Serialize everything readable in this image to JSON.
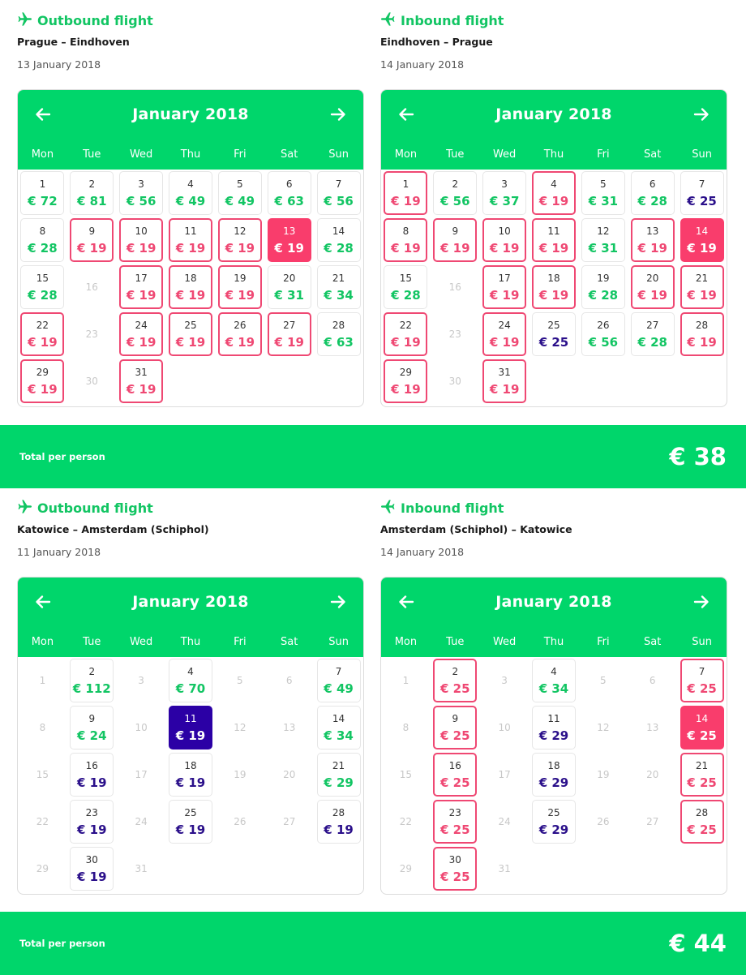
{
  "colors": {
    "brand_green": "#00d66b",
    "price_green": "#12c563",
    "promo_pink": "#ef4873",
    "selected_pink": "#f93d6c",
    "navy": "#2b00a5"
  },
  "weekday_labels": [
    "Mon",
    "Tue",
    "Wed",
    "Thu",
    "Fri",
    "Sat",
    "Sun"
  ],
  "trips": [
    {
      "outbound": {
        "title": "Outbound flight",
        "icon": "plane-right-icon",
        "route": "Prague – Eindhoven",
        "date": "13 January 2018",
        "calendar": {
          "month": "January 2018",
          "leading_blanks": 0,
          "days": [
            {
              "d": "1",
              "p": "€ 72",
              "s": "green"
            },
            {
              "d": "2",
              "p": "€ 81",
              "s": "green"
            },
            {
              "d": "3",
              "p": "€ 56",
              "s": "green"
            },
            {
              "d": "4",
              "p": "€ 49",
              "s": "green"
            },
            {
              "d": "5",
              "p": "€ 49",
              "s": "green"
            },
            {
              "d": "6",
              "p": "€ 63",
              "s": "green"
            },
            {
              "d": "7",
              "p": "€ 56",
              "s": "green"
            },
            {
              "d": "8",
              "p": "€ 28",
              "s": "green"
            },
            {
              "d": "9",
              "p": "€ 19",
              "s": "pink"
            },
            {
              "d": "10",
              "p": "€ 19",
              "s": "pink"
            },
            {
              "d": "11",
              "p": "€ 19",
              "s": "pink"
            },
            {
              "d": "12",
              "p": "€ 19",
              "s": "pink"
            },
            {
              "d": "13",
              "p": "€ 19",
              "s": "sel-pink"
            },
            {
              "d": "14",
              "p": "€ 28",
              "s": "green"
            },
            {
              "d": "15",
              "p": "€ 28",
              "s": "green"
            },
            {
              "d": "16",
              "p": "",
              "s": "empty"
            },
            {
              "d": "17",
              "p": "€ 19",
              "s": "pink"
            },
            {
              "d": "18",
              "p": "€ 19",
              "s": "pink"
            },
            {
              "d": "19",
              "p": "€ 19",
              "s": "pink"
            },
            {
              "d": "20",
              "p": "€ 31",
              "s": "green"
            },
            {
              "d": "21",
              "p": "€ 34",
              "s": "green"
            },
            {
              "d": "22",
              "p": "€ 19",
              "s": "pink"
            },
            {
              "d": "23",
              "p": "",
              "s": "empty"
            },
            {
              "d": "24",
              "p": "€ 19",
              "s": "pink"
            },
            {
              "d": "25",
              "p": "€ 19",
              "s": "pink"
            },
            {
              "d": "26",
              "p": "€ 19",
              "s": "pink"
            },
            {
              "d": "27",
              "p": "€ 19",
              "s": "pink"
            },
            {
              "d": "28",
              "p": "€ 63",
              "s": "green"
            },
            {
              "d": "29",
              "p": "€ 19",
              "s": "pink"
            },
            {
              "d": "30",
              "p": "",
              "s": "empty"
            },
            {
              "d": "31",
              "p": "€ 19",
              "s": "pink"
            }
          ]
        }
      },
      "inbound": {
        "title": "Inbound flight",
        "icon": "plane-left-icon",
        "route": "Eindhoven – Prague",
        "date": "14 January 2018",
        "calendar": {
          "month": "January 2018",
          "leading_blanks": 0,
          "days": [
            {
              "d": "1",
              "p": "€ 19",
              "s": "pink"
            },
            {
              "d": "2",
              "p": "€ 56",
              "s": "green"
            },
            {
              "d": "3",
              "p": "€ 37",
              "s": "green"
            },
            {
              "d": "4",
              "p": "€ 19",
              "s": "pink"
            },
            {
              "d": "5",
              "p": "€ 31",
              "s": "green"
            },
            {
              "d": "6",
              "p": "€ 28",
              "s": "green"
            },
            {
              "d": "7",
              "p": "€ 25",
              "s": "navy"
            },
            {
              "d": "8",
              "p": "€ 19",
              "s": "pink"
            },
            {
              "d": "9",
              "p": "€ 19",
              "s": "pink"
            },
            {
              "d": "10",
              "p": "€ 19",
              "s": "pink"
            },
            {
              "d": "11",
              "p": "€ 19",
              "s": "pink"
            },
            {
              "d": "12",
              "p": "€ 31",
              "s": "green"
            },
            {
              "d": "13",
              "p": "€ 19",
              "s": "pink"
            },
            {
              "d": "14",
              "p": "€ 19",
              "s": "sel-pink"
            },
            {
              "d": "15",
              "p": "€ 28",
              "s": "green"
            },
            {
              "d": "16",
              "p": "",
              "s": "empty"
            },
            {
              "d": "17",
              "p": "€ 19",
              "s": "pink"
            },
            {
              "d": "18",
              "p": "€ 19",
              "s": "pink"
            },
            {
              "d": "19",
              "p": "€ 28",
              "s": "green"
            },
            {
              "d": "20",
              "p": "€ 19",
              "s": "pink"
            },
            {
              "d": "21",
              "p": "€ 19",
              "s": "pink"
            },
            {
              "d": "22",
              "p": "€ 19",
              "s": "pink"
            },
            {
              "d": "23",
              "p": "",
              "s": "empty"
            },
            {
              "d": "24",
              "p": "€ 19",
              "s": "pink"
            },
            {
              "d": "25",
              "p": "€ 25",
              "s": "navy"
            },
            {
              "d": "26",
              "p": "€ 56",
              "s": "green"
            },
            {
              "d": "27",
              "p": "€ 28",
              "s": "green"
            },
            {
              "d": "28",
              "p": "€ 19",
              "s": "pink"
            },
            {
              "d": "29",
              "p": "€ 19",
              "s": "pink"
            },
            {
              "d": "30",
              "p": "",
              "s": "empty"
            },
            {
              "d": "31",
              "p": "€ 19",
              "s": "pink"
            }
          ]
        }
      },
      "total": {
        "label": "Total per person",
        "value": "€ 38"
      }
    },
    {
      "outbound": {
        "title": "Outbound flight",
        "icon": "plane-right-icon",
        "route": "Katowice – Amsterdam (Schiphol)",
        "date": "11 January 2018",
        "calendar": {
          "month": "January 2018",
          "leading_blanks": 0,
          "days": [
            {
              "d": "1",
              "p": "",
              "s": "empty"
            },
            {
              "d": "2",
              "p": "€ 112",
              "s": "green"
            },
            {
              "d": "3",
              "p": "",
              "s": "empty"
            },
            {
              "d": "4",
              "p": "€ 70",
              "s": "green"
            },
            {
              "d": "5",
              "p": "",
              "s": "empty"
            },
            {
              "d": "6",
              "p": "",
              "s": "empty"
            },
            {
              "d": "7",
              "p": "€ 49",
              "s": "green"
            },
            {
              "d": "8",
              "p": "",
              "s": "empty"
            },
            {
              "d": "9",
              "p": "€ 24",
              "s": "green"
            },
            {
              "d": "10",
              "p": "",
              "s": "empty"
            },
            {
              "d": "11",
              "p": "€ 19",
              "s": "sel-navy"
            },
            {
              "d": "12",
              "p": "",
              "s": "empty"
            },
            {
              "d": "13",
              "p": "",
              "s": "empty"
            },
            {
              "d": "14",
              "p": "€ 34",
              "s": "green"
            },
            {
              "d": "15",
              "p": "",
              "s": "empty"
            },
            {
              "d": "16",
              "p": "€ 19",
              "s": "navy"
            },
            {
              "d": "17",
              "p": "",
              "s": "empty"
            },
            {
              "d": "18",
              "p": "€ 19",
              "s": "navy"
            },
            {
              "d": "19",
              "p": "",
              "s": "empty"
            },
            {
              "d": "20",
              "p": "",
              "s": "empty"
            },
            {
              "d": "21",
              "p": "€ 29",
              "s": "green"
            },
            {
              "d": "22",
              "p": "",
              "s": "empty"
            },
            {
              "d": "23",
              "p": "€ 19",
              "s": "navy"
            },
            {
              "d": "24",
              "p": "",
              "s": "empty"
            },
            {
              "d": "25",
              "p": "€ 19",
              "s": "navy"
            },
            {
              "d": "26",
              "p": "",
              "s": "empty"
            },
            {
              "d": "27",
              "p": "",
              "s": "empty"
            },
            {
              "d": "28",
              "p": "€ 19",
              "s": "navy"
            },
            {
              "d": "29",
              "p": "",
              "s": "empty"
            },
            {
              "d": "30",
              "p": "€ 19",
              "s": "navy"
            },
            {
              "d": "31",
              "p": "",
              "s": "empty"
            }
          ]
        }
      },
      "inbound": {
        "title": "Inbound flight",
        "icon": "plane-left-icon",
        "route": "Amsterdam (Schiphol) – Katowice",
        "date": "14 January 2018",
        "calendar": {
          "month": "January 2018",
          "leading_blanks": 0,
          "days": [
            {
              "d": "1",
              "p": "",
              "s": "empty"
            },
            {
              "d": "2",
              "p": "€ 25",
              "s": "pink"
            },
            {
              "d": "3",
              "p": "",
              "s": "empty"
            },
            {
              "d": "4",
              "p": "€ 34",
              "s": "green"
            },
            {
              "d": "5",
              "p": "",
              "s": "empty"
            },
            {
              "d": "6",
              "p": "",
              "s": "empty"
            },
            {
              "d": "7",
              "p": "€ 25",
              "s": "pink"
            },
            {
              "d": "8",
              "p": "",
              "s": "empty"
            },
            {
              "d": "9",
              "p": "€ 25",
              "s": "pink"
            },
            {
              "d": "10",
              "p": "",
              "s": "empty"
            },
            {
              "d": "11",
              "p": "€ 29",
              "s": "navy"
            },
            {
              "d": "12",
              "p": "",
              "s": "empty"
            },
            {
              "d": "13",
              "p": "",
              "s": "empty"
            },
            {
              "d": "14",
              "p": "€ 25",
              "s": "sel-pink"
            },
            {
              "d": "15",
              "p": "",
              "s": "empty"
            },
            {
              "d": "16",
              "p": "€ 25",
              "s": "pink"
            },
            {
              "d": "17",
              "p": "",
              "s": "empty"
            },
            {
              "d": "18",
              "p": "€ 29",
              "s": "navy"
            },
            {
              "d": "19",
              "p": "",
              "s": "empty"
            },
            {
              "d": "20",
              "p": "",
              "s": "empty"
            },
            {
              "d": "21",
              "p": "€ 25",
              "s": "pink"
            },
            {
              "d": "22",
              "p": "",
              "s": "empty"
            },
            {
              "d": "23",
              "p": "€ 25",
              "s": "pink"
            },
            {
              "d": "24",
              "p": "",
              "s": "empty"
            },
            {
              "d": "25",
              "p": "€ 29",
              "s": "navy"
            },
            {
              "d": "26",
              "p": "",
              "s": "empty"
            },
            {
              "d": "27",
              "p": "",
              "s": "empty"
            },
            {
              "d": "28",
              "p": "€ 25",
              "s": "pink"
            },
            {
              "d": "29",
              "p": "",
              "s": "empty"
            },
            {
              "d": "30",
              "p": "€ 25",
              "s": "pink"
            },
            {
              "d": "31",
              "p": "",
              "s": "empty"
            }
          ]
        }
      },
      "total": {
        "label": "Total per person",
        "value": "€ 44"
      }
    }
  ]
}
